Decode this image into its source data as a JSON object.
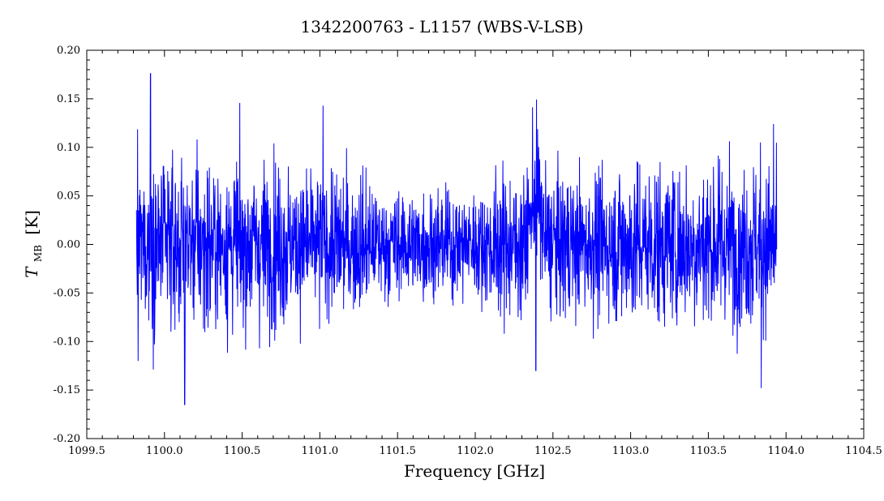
{
  "chart_data": {
    "type": "line",
    "title": "1342200763 - L1157 (WBS-V-LSB)",
    "xlabel": "Frequency [GHz]",
    "ylabel": {
      "symbol": "T",
      "subscript": "MB",
      "unit": "[K]"
    },
    "xlim": [
      1099.5,
      1104.5
    ],
    "ylim": [
      -0.2,
      0.2
    ],
    "xticks": [
      "1099.5",
      "1100.0",
      "1100.5",
      "1101.0",
      "1101.5",
      "1102.0",
      "1102.5",
      "1103.0",
      "1103.5",
      "1104.0",
      "1104.5"
    ],
    "yticks": [
      "-0.20",
      "-0.15",
      "-0.10",
      "-0.05",
      "0.00",
      "0.05",
      "0.10",
      "0.15",
      "0.20"
    ],
    "grid": false,
    "series": [
      {
        "color": "#0000ff",
        "x_range": [
          1099.82,
          1103.94
        ],
        "noise_rms_approx": 0.04,
        "features": [
          {
            "x": 1099.83,
            "y": 0.125
          },
          {
            "x": 1099.83,
            "y": -0.12
          },
          {
            "x": 1099.91,
            "y": 0.176
          },
          {
            "x": 1100.13,
            "y": -0.165
          },
          {
            "x": 1101.02,
            "y": 0.143
          },
          {
            "x": 1102.39,
            "y": 0.178
          },
          {
            "x": 1102.39,
            "y": -0.13
          },
          {
            "x": 1103.84,
            "y": -0.148
          },
          {
            "x": 1103.92,
            "y": 0.124
          }
        ]
      }
    ]
  }
}
